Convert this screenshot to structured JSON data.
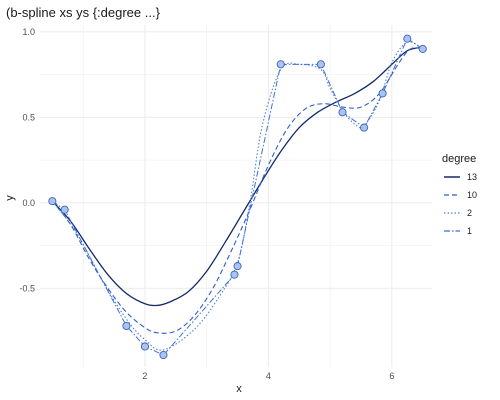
{
  "chart_data": {
    "type": "line",
    "title": "(b-spline xs ys {:degree ...}",
    "xlabel": "x",
    "ylabel": "y",
    "xlim": [
      0.3,
      6.65
    ],
    "ylim": [
      -0.96,
      1.04
    ],
    "x_ticks": [
      2,
      4,
      6
    ],
    "x_tick_labels": [
      "2",
      "4",
      "6"
    ],
    "y_ticks": [
      -0.5,
      0.0,
      0.5,
      1.0
    ],
    "y_tick_labels": [
      "-0.5",
      "0.0",
      "0.5",
      "1.0"
    ],
    "grid": true,
    "legend": {
      "title": "degree",
      "position": "right",
      "entries": [
        "13",
        "10",
        "2",
        "1"
      ]
    },
    "points": {
      "x": [
        0.5,
        0.7,
        1.7,
        2.0,
        2.3,
        3.45,
        3.5,
        4.2,
        4.85,
        5.2,
        5.55,
        5.85,
        6.25,
        6.5
      ],
      "y": [
        0.01,
        -0.04,
        -0.72,
        -0.84,
        -0.89,
        -0.42,
        -0.37,
        0.81,
        0.81,
        0.53,
        0.44,
        0.64,
        0.96,
        0.9
      ]
    },
    "series": [
      {
        "name": "13",
        "x": [
          0.5,
          0.8,
          1.1,
          1.4,
          1.7,
          2.0,
          2.2,
          2.4,
          2.7,
          3.0,
          3.3,
          3.6,
          3.9,
          4.2,
          4.5,
          4.8,
          5.1,
          5.4,
          5.7,
          6.0,
          6.25,
          6.5
        ],
        "y": [
          0.01,
          -0.11,
          -0.27,
          -0.42,
          -0.53,
          -0.59,
          -0.6,
          -0.58,
          -0.52,
          -0.4,
          -0.23,
          -0.05,
          0.13,
          0.3,
          0.44,
          0.53,
          0.59,
          0.64,
          0.71,
          0.81,
          0.89,
          0.91
        ]
      },
      {
        "name": "10",
        "x": [
          0.5,
          0.8,
          1.1,
          1.4,
          1.7,
          2.0,
          2.2,
          2.5,
          2.8,
          3.1,
          3.4,
          3.7,
          4.0,
          4.3,
          4.6,
          4.9,
          5.2,
          5.5,
          5.8,
          6.1,
          6.3,
          6.5
        ],
        "y": [
          0.01,
          -0.13,
          -0.33,
          -0.5,
          -0.64,
          -0.73,
          -0.76,
          -0.75,
          -0.66,
          -0.5,
          -0.28,
          -0.04,
          0.22,
          0.43,
          0.55,
          0.58,
          0.56,
          0.56,
          0.64,
          0.81,
          0.9,
          0.9
        ]
      },
      {
        "name": "2",
        "x": [
          0.5,
          0.9,
          1.3,
          1.7,
          2.0,
          2.3,
          2.8,
          3.2,
          3.5,
          3.7,
          3.9,
          4.2,
          4.5,
          4.85,
          5.0,
          5.2,
          5.4,
          5.55,
          5.8,
          6.0,
          6.25,
          6.5
        ],
        "y": [
          0.01,
          -0.18,
          -0.45,
          -0.68,
          -0.8,
          -0.86,
          -0.74,
          -0.55,
          -0.35,
          0.0,
          0.45,
          0.78,
          0.81,
          0.78,
          0.67,
          0.54,
          0.46,
          0.45,
          0.6,
          0.82,
          0.94,
          0.9
        ]
      },
      {
        "name": "1",
        "x": [
          0.5,
          0.7,
          1.7,
          2.0,
          2.3,
          3.45,
          3.5,
          4.2,
          4.85,
          5.2,
          5.55,
          5.85,
          6.25,
          6.5
        ],
        "y": [
          0.01,
          -0.04,
          -0.72,
          -0.84,
          -0.89,
          -0.42,
          -0.37,
          0.81,
          0.81,
          0.53,
          0.44,
          0.64,
          0.96,
          0.9
        ]
      }
    ],
    "colors": {
      "line_13": "#132b6b",
      "line_10": "#2d5fc9",
      "line_2": "#4f7fe0",
      "line_1": "#3f6fd4",
      "point_fill": "#a9c4f2",
      "point_stroke": "#3d63b8",
      "grid": "#ebebeb"
    }
  }
}
